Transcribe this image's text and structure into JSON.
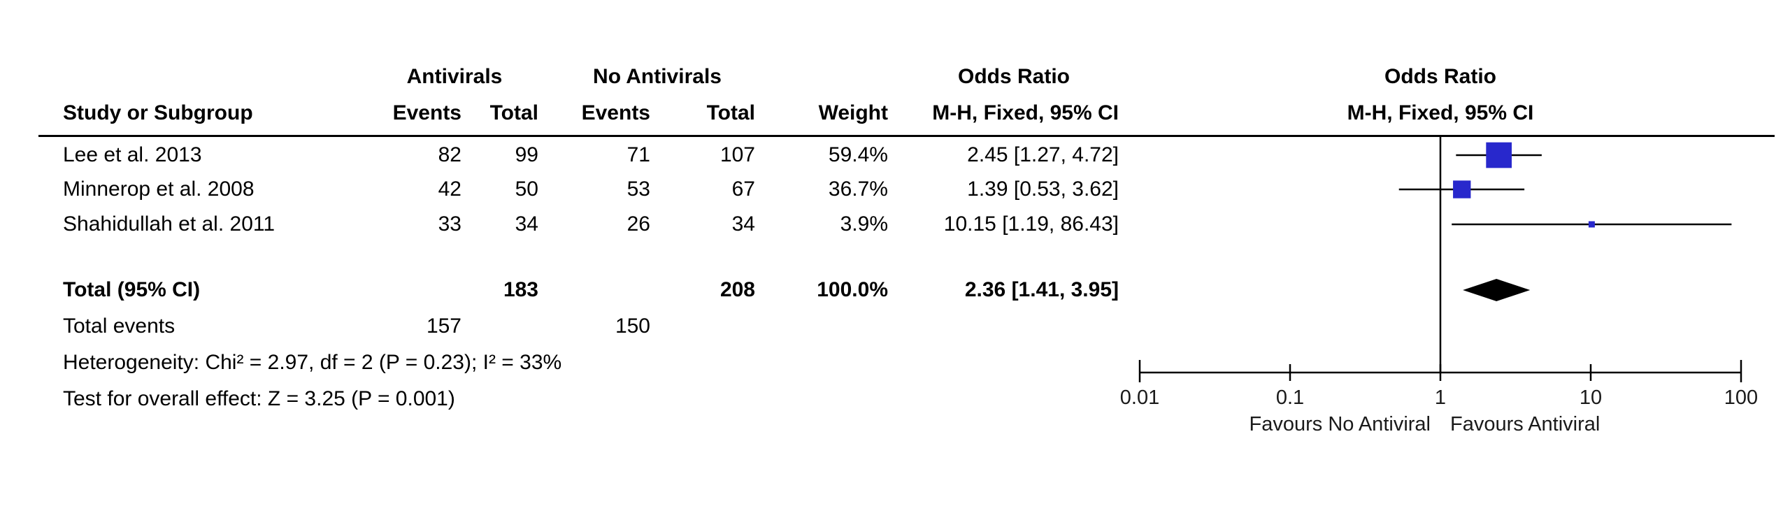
{
  "table": {
    "group_headers": {
      "antivirals": "Antivirals",
      "no_antivirals": "No Antivirals",
      "odds_ratio": "Odds Ratio",
      "odds_ratio_plot": "Odds Ratio"
    },
    "columns": {
      "study": "Study or Subgroup",
      "events1": "Events",
      "total1": "Total",
      "events2": "Events",
      "total2": "Total",
      "weight": "Weight",
      "ci": "M-H, Fixed, 95% CI",
      "ci_plot": "M-H, Fixed, 95% CI"
    },
    "rows": [
      {
        "study": "Lee et al. 2013",
        "events1": "82",
        "total1": "99",
        "events2": "71",
        "total2": "107",
        "weight": "59.4%",
        "ci": "2.45 [1.27, 4.72]"
      },
      {
        "study": "Minnerop et al. 2008",
        "events1": "42",
        "total1": "50",
        "events2": "53",
        "total2": "67",
        "weight": "36.7%",
        "ci": "1.39 [0.53, 3.62]"
      },
      {
        "study": "Shahidullah et al. 2011",
        "events1": "33",
        "total1": "34",
        "events2": "26",
        "total2": "34",
        "weight": "3.9%",
        "ci": "10.15 [1.19, 86.43]"
      }
    ],
    "total": {
      "label": "Total (95% CI)",
      "total1": "183",
      "total2": "208",
      "weight": "100.0%",
      "ci": "2.36 [1.41, 3.95]"
    },
    "total_events": {
      "label": "Total events",
      "events1": "157",
      "events2": "150"
    },
    "heterogeneity": "Heterogeneity: Chi² = 2.97, df = 2 (P = 0.23); I² = 33%",
    "overall_effect": "Test for overall effect: Z = 3.25 (P = 0.001)"
  },
  "chart_data": {
    "type": "scatter",
    "kind": "forest-plot",
    "title": "Odds Ratio, M-H, Fixed, 95% CI",
    "scale": "log10",
    "xlim": [
      0.01,
      100
    ],
    "ticks": [
      0.01,
      0.1,
      1,
      10,
      100
    ],
    "tick_labels": [
      "0.01",
      "0.1",
      "1",
      "10",
      "100"
    ],
    "no_effect_line": 1,
    "axis_label_left": "Favours No Antiviral",
    "axis_label_right": "Favours Antiviral",
    "marker_color": "#2828cc",
    "line_color": "#000000",
    "studies": [
      {
        "name": "Lee et al. 2013",
        "or": 2.45,
        "ci_low": 1.27,
        "ci_high": 4.72,
        "weight": 59.4
      },
      {
        "name": "Minnerop et al. 2008",
        "or": 1.39,
        "ci_low": 0.53,
        "ci_high": 3.62,
        "weight": 36.7
      },
      {
        "name": "Shahidullah et al. 2011",
        "or": 10.15,
        "ci_low": 1.19,
        "ci_high": 86.43,
        "weight": 3.9
      }
    ],
    "total": {
      "or": 2.36,
      "ci_low": 1.41,
      "ci_high": 3.95
    }
  }
}
